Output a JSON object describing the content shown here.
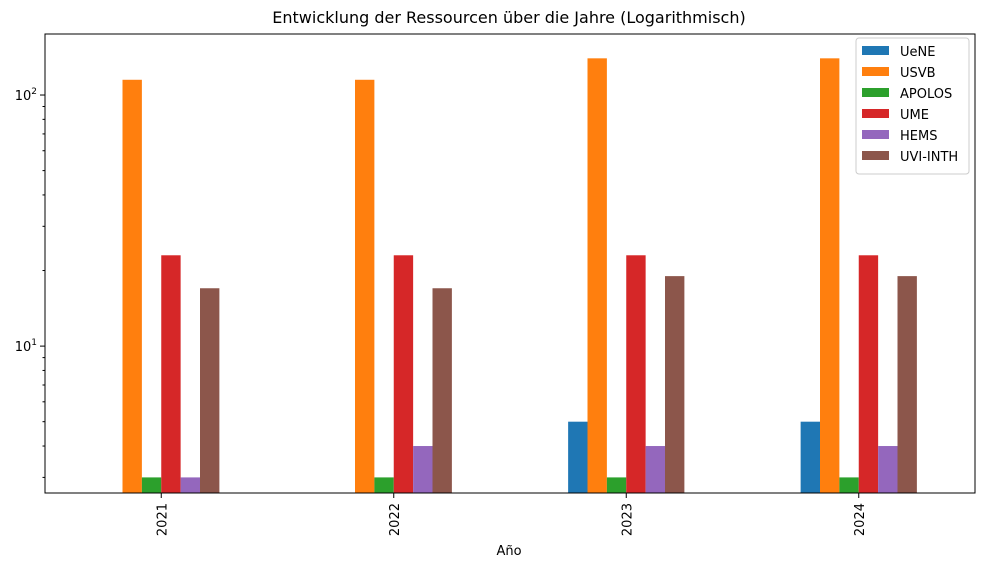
{
  "chart_data": {
    "type": "bar",
    "title": "Entwicklung der Ressourcen über die Jahre (Logarithmisch)",
    "xlabel": "Año",
    "ylabel": "",
    "yscale": "log",
    "ylim": [
      2.6,
      175
    ],
    "yticks": [
      {
        "value": 10,
        "base": "10",
        "exp": "1"
      },
      {
        "value": 100,
        "base": "10",
        "exp": "2"
      }
    ],
    "categories": [
      "2021",
      "2022",
      "2023",
      "2024"
    ],
    "legend_position": "top-right",
    "series": [
      {
        "name": "UeNE",
        "color": "#1f77b4",
        "values": [
          null,
          null,
          5,
          5
        ]
      },
      {
        "name": "USVB",
        "color": "#ff7f0e",
        "values": [
          115,
          115,
          140,
          140
        ]
      },
      {
        "name": "APOLOS",
        "color": "#2ca02c",
        "values": [
          3,
          3,
          3,
          3
        ]
      },
      {
        "name": "UME",
        "color": "#d62728",
        "values": [
          23,
          23,
          23,
          23
        ]
      },
      {
        "name": "HEMS",
        "color": "#9467bd",
        "values": [
          3,
          4,
          4,
          4
        ]
      },
      {
        "name": "UVI-INTH",
        "color": "#8c564b",
        "values": [
          17,
          17,
          19,
          19
        ]
      }
    ]
  }
}
